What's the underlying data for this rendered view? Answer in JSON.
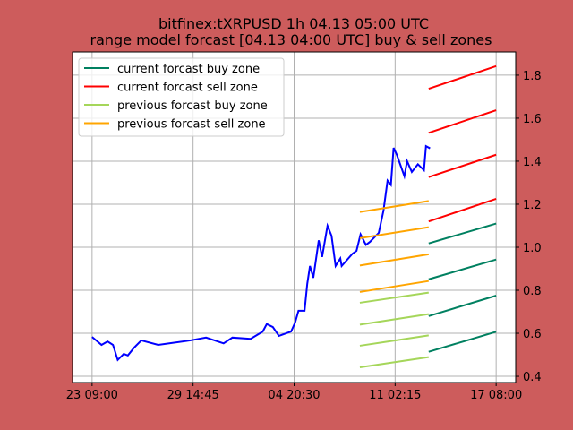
{
  "chart_data": {
    "type": "line",
    "title": "bitfinex:tXRPUSD 1h 04.13 05:00 UTC",
    "subtitle": "range model forcast [04.13 04:00 UTC] buy & sell zones",
    "xlabel": "",
    "ylabel": "",
    "x_unit": "hours since 23 09:00",
    "xlim": [
      -29,
      628
    ],
    "ylim": [
      0.371,
      1.908
    ],
    "grid": true,
    "legend_position": "top-left",
    "x_ticks": [
      {
        "x": 0,
        "label": "23 09:00"
      },
      {
        "x": 149.75,
        "label": "29 14:45"
      },
      {
        "x": 299.5,
        "label": "04 20:30"
      },
      {
        "x": 449.25,
        "label": "11 02:15"
      },
      {
        "x": 599,
        "label": "17 08:00"
      }
    ],
    "y_ticks": [
      {
        "y": 0.4,
        "label": "0.4"
      },
      {
        "y": 0.6,
        "label": "0.6"
      },
      {
        "y": 0.8,
        "label": "0.8"
      },
      {
        "y": 1.0,
        "label": "1.0"
      },
      {
        "y": 1.2,
        "label": "1.2"
      },
      {
        "y": 1.4,
        "label": "1.4"
      },
      {
        "y": 1.6,
        "label": "1.6"
      },
      {
        "y": 1.8,
        "label": "1.8"
      }
    ],
    "price": {
      "name": "price",
      "color": "#0000ff",
      "x": [
        0,
        14,
        23,
        31,
        38,
        47,
        53,
        62,
        73,
        98,
        146,
        169,
        195,
        208,
        235,
        253,
        259,
        268,
        277,
        295,
        301,
        306,
        315,
        319,
        323,
        328,
        336,
        341,
        349,
        355,
        361,
        368,
        370,
        386,
        392,
        398,
        406,
        412,
        425,
        432,
        438,
        443,
        447,
        452,
        463,
        467,
        474,
        483,
        492,
        495,
        501
      ],
      "y": [
        0.583,
        0.546,
        0.562,
        0.546,
        0.476,
        0.504,
        0.497,
        0.532,
        0.567,
        0.546,
        0.567,
        0.58,
        0.553,
        0.58,
        0.574,
        0.608,
        0.643,
        0.629,
        0.588,
        0.608,
        0.65,
        0.705,
        0.705,
        0.83,
        0.913,
        0.858,
        1.032,
        0.955,
        1.1,
        1.053,
        0.913,
        0.948,
        0.913,
        0.97,
        0.983,
        1.06,
        1.011,
        1.025,
        1.067,
        1.17,
        1.31,
        1.29,
        1.462,
        1.428,
        1.33,
        1.4,
        1.35,
        1.386,
        1.358,
        1.47,
        1.46
      ]
    },
    "series": [
      {
        "name": "current forcast buy zone",
        "color": "#008060",
        "x": [
          499,
          599
        ],
        "segments": [
          [
            1.018,
            1.11
          ],
          [
            0.851,
            0.943
          ],
          [
            0.68,
            0.775
          ],
          [
            0.514,
            0.607
          ]
        ]
      },
      {
        "name": "current forcast sell zone",
        "color": "#ff0000",
        "x": [
          499,
          599
        ],
        "segments": [
          [
            1.737,
            1.842
          ],
          [
            1.532,
            1.637
          ],
          [
            1.326,
            1.43
          ],
          [
            1.12,
            1.225
          ]
        ]
      },
      {
        "name": "previous forcast buy zone",
        "color": "#a5d65a",
        "x": [
          397,
          499
        ],
        "segments": [
          [
            0.742,
            0.789
          ],
          [
            0.64,
            0.689
          ],
          [
            0.542,
            0.59
          ],
          [
            0.442,
            0.489
          ]
        ]
      },
      {
        "name": "previous forcast sell zone",
        "color": "#ffa500",
        "x": [
          397,
          499
        ],
        "segments": [
          [
            1.164,
            1.215
          ],
          [
            1.042,
            1.093
          ],
          [
            0.915,
            0.967
          ],
          [
            0.792,
            0.843
          ]
        ]
      }
    ]
  }
}
